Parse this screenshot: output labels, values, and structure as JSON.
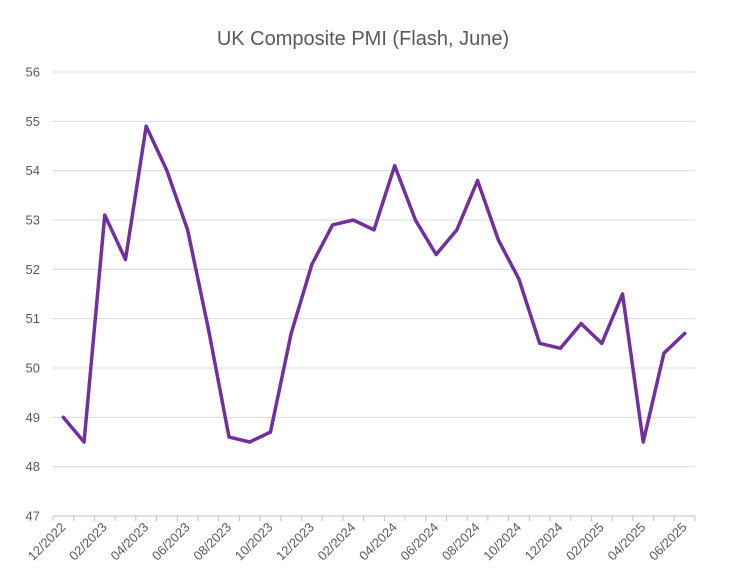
{
  "chart_data": {
    "type": "line",
    "title": "UK Composite PMI (Flash, June)",
    "xlabel": "",
    "ylabel": "",
    "ylim": [
      47,
      56
    ],
    "yticks": [
      "47",
      "48",
      "49",
      "50",
      "51",
      "52",
      "53",
      "54",
      "55",
      "56"
    ],
    "grid": true,
    "legend": "none",
    "colors": {
      "series": "#7030a0",
      "grid": "#d9d9d9",
      "text": "#595959"
    },
    "x": [
      "12/2022",
      "01/2023",
      "02/2023",
      "03/2023",
      "04/2023",
      "05/2023",
      "06/2023",
      "07/2023",
      "08/2023",
      "09/2023",
      "10/2023",
      "11/2023",
      "12/2023",
      "01/2024",
      "02/2024",
      "03/2024",
      "04/2024",
      "05/2024",
      "06/2024",
      "07/2024",
      "08/2024",
      "09/2024",
      "10/2024",
      "11/2024",
      "12/2024",
      "01/2025",
      "02/2025",
      "03/2025",
      "04/2025",
      "05/2025",
      "06/2025"
    ],
    "xtick_labels": [
      "12/2022",
      "02/2023",
      "04/2023",
      "06/2023",
      "08/2023",
      "10/2023",
      "12/2023",
      "02/2024",
      "04/2024",
      "06/2024",
      "08/2024",
      "10/2024",
      "12/2024",
      "02/2025",
      "04/2025",
      "06/2025"
    ],
    "series": [
      {
        "values": [
          49.0,
          48.5,
          53.1,
          52.2,
          54.9,
          54.0,
          52.8,
          50.8,
          48.6,
          48.5,
          48.7,
          50.7,
          52.1,
          52.9,
          53.0,
          52.8,
          54.1,
          53.0,
          52.3,
          52.8,
          53.8,
          52.6,
          51.8,
          50.5,
          50.4,
          50.9,
          50.5,
          51.5,
          48.5,
          50.3,
          50.7
        ]
      }
    ]
  }
}
